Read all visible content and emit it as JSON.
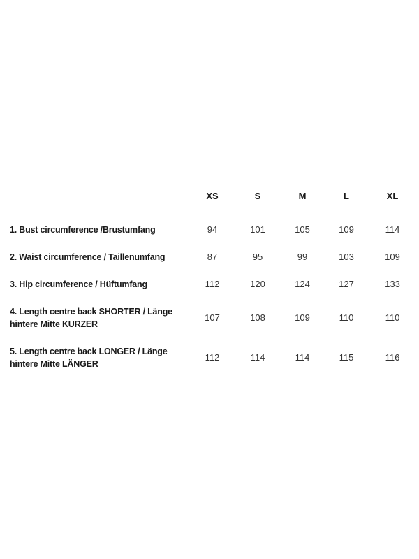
{
  "table": {
    "columns": [
      "XS",
      "S",
      "M",
      "L",
      "XL"
    ],
    "rows": [
      {
        "label": "1. Bust circumference /Brustumfang",
        "values": [
          "94",
          "101",
          "105",
          "109",
          "114"
        ]
      },
      {
        "label": "2. Waist circumference / Taillenumfang",
        "values": [
          "87",
          "95",
          "99",
          "103",
          "109"
        ]
      },
      {
        "label": "3. Hip circumference / Hüftumfang",
        "values": [
          "112",
          "120",
          "124",
          "127",
          "133"
        ]
      },
      {
        "label": "4. Length centre back SHORTER / Länge hintere Mitte KURZER",
        "values": [
          "107",
          "108",
          "109",
          "110",
          "110"
        ]
      },
      {
        "label": "5. Length centre back LONGER / Länge hintere Mitte LÄNGER",
        "values": [
          "112",
          "114",
          "114",
          "115",
          "116"
        ]
      }
    ]
  }
}
